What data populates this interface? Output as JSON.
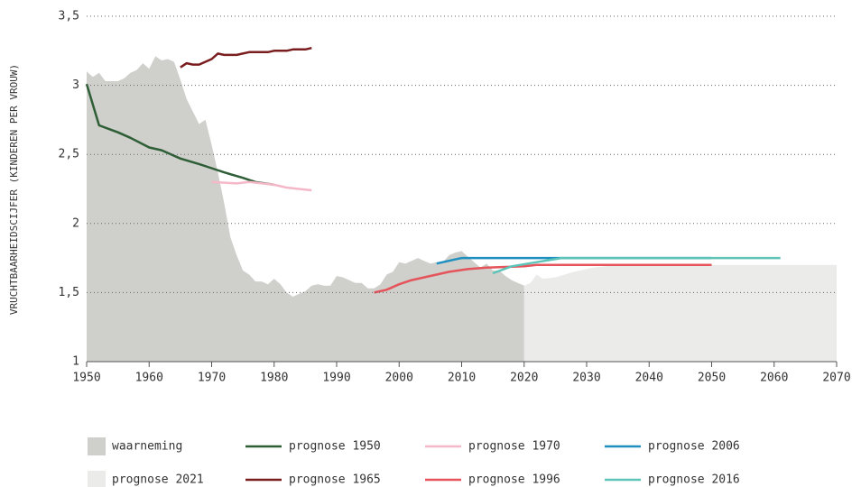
{
  "chart_data": {
    "type": "line",
    "y_label": "VRUCHTBAARHEIDSCIJFER (KINDEREN PER VROUW)",
    "xlim": [
      1950,
      2070
    ],
    "xticks": [
      1950,
      1960,
      1970,
      1980,
      1990,
      2000,
      2010,
      2020,
      2030,
      2040,
      2050,
      2060,
      2070
    ],
    "ylim": [
      1,
      3.5
    ],
    "yticks": [
      1,
      {
        "value": 1.5,
        "label": "1,5"
      },
      2,
      {
        "value": 2.5,
        "label": "2,5"
      },
      3,
      {
        "value": 3.5,
        "label": "3,5"
      }
    ],
    "grid": true,
    "legend": "bottom",
    "series": [
      {
        "name": "waarneming",
        "type": "area",
        "color": "#cfcfcb",
        "x": [
          1950,
          1951,
          1952,
          1953,
          1954,
          1955,
          1956,
          1957,
          1958,
          1959,
          1960,
          1961,
          1962,
          1963,
          1964,
          1965,
          1966,
          1967,
          1968,
          1969,
          1970,
          1971,
          1972,
          1973,
          1974,
          1975,
          1976,
          1977,
          1978,
          1979,
          1980,
          1981,
          1982,
          1983,
          1984,
          1985,
          1986,
          1987,
          1988,
          1989,
          1990,
          1991,
          1992,
          1993,
          1994,
          1995,
          1996,
          1997,
          1998,
          1999,
          2000,
          2001,
          2002,
          2003,
          2004,
          2005,
          2006,
          2007,
          2008,
          2009,
          2010,
          2011,
          2012,
          2013,
          2014,
          2015,
          2016,
          2017,
          2018,
          2019,
          2020
        ],
        "values": [
          3.1,
          3.06,
          3.09,
          3.03,
          3.03,
          3.03,
          3.05,
          3.09,
          3.11,
          3.16,
          3.12,
          3.21,
          3.18,
          3.19,
          3.17,
          3.04,
          2.9,
          2.81,
          2.72,
          2.75,
          2.57,
          2.37,
          2.15,
          1.9,
          1.77,
          1.66,
          1.63,
          1.58,
          1.58,
          1.56,
          1.6,
          1.56,
          1.5,
          1.47,
          1.49,
          1.51,
          1.55,
          1.56,
          1.55,
          1.55,
          1.62,
          1.61,
          1.59,
          1.57,
          1.57,
          1.53,
          1.53,
          1.56,
          1.63,
          1.65,
          1.72,
          1.71,
          1.73,
          1.75,
          1.73,
          1.71,
          1.72,
          1.72,
          1.77,
          1.79,
          1.8,
          1.76,
          1.72,
          1.68,
          1.71,
          1.66,
          1.66,
          1.62,
          1.59,
          1.57,
          1.55
        ]
      },
      {
        "name": "prognose 2021",
        "type": "area",
        "color": "#ebebea",
        "x": [
          2020,
          2021,
          2022,
          2023,
          2025,
          2028,
          2031,
          2035,
          2070
        ],
        "values": [
          1.55,
          1.57,
          1.63,
          1.6,
          1.61,
          1.65,
          1.68,
          1.7,
          1.7
        ]
      },
      {
        "name": "prognose 1950",
        "type": "line",
        "color": "#2e5e36",
        "x": [
          1950,
          1952,
          1955,
          1957,
          1960,
          1962,
          1965,
          1968,
          1970,
          1972,
          1975,
          1977,
          1980
        ],
        "values": [
          3.01,
          2.71,
          2.66,
          2.62,
          2.55,
          2.53,
          2.47,
          2.43,
          2.4,
          2.37,
          2.33,
          2.3,
          2.28
        ]
      },
      {
        "name": "prognose 1965",
        "type": "line",
        "color": "#7a1d1f",
        "x": [
          1965,
          1966,
          1967,
          1968,
          1970,
          1971,
          1972,
          1974,
          1976,
          1979,
          1980,
          1982,
          1983,
          1985,
          1986
        ],
        "values": [
          3.13,
          3.16,
          3.15,
          3.15,
          3.19,
          3.23,
          3.22,
          3.22,
          3.24,
          3.24,
          3.25,
          3.25,
          3.26,
          3.26,
          3.27
        ]
      },
      {
        "name": "prognose 1970",
        "type": "line",
        "color": "#f4b8c8",
        "x": [
          1970,
          1974,
          1976,
          1980,
          1982,
          1984,
          1986
        ],
        "values": [
          2.3,
          2.29,
          2.3,
          2.28,
          2.26,
          2.25,
          2.24
        ]
      },
      {
        "name": "prognose 1996",
        "type": "line",
        "color": "#e5545a",
        "x": [
          1996,
          1998,
          2000,
          2002,
          2005,
          2008,
          2011,
          2014,
          2020,
          2022,
          2050
        ],
        "values": [
          1.5,
          1.52,
          1.56,
          1.59,
          1.62,
          1.65,
          1.67,
          1.68,
          1.69,
          1.7,
          1.7
        ]
      },
      {
        "name": "prognose 2006",
        "type": "line",
        "color": "#1e8fbf",
        "x": [
          2006,
          2010,
          2050
        ],
        "values": [
          1.71,
          1.75,
          1.75
        ]
      },
      {
        "name": "prognose 2016",
        "type": "line",
        "color": "#5ec4b8",
        "x": [
          2015,
          2018,
          2022,
          2026,
          2061
        ],
        "values": [
          1.64,
          1.69,
          1.72,
          1.75,
          1.75
        ]
      }
    ]
  }
}
